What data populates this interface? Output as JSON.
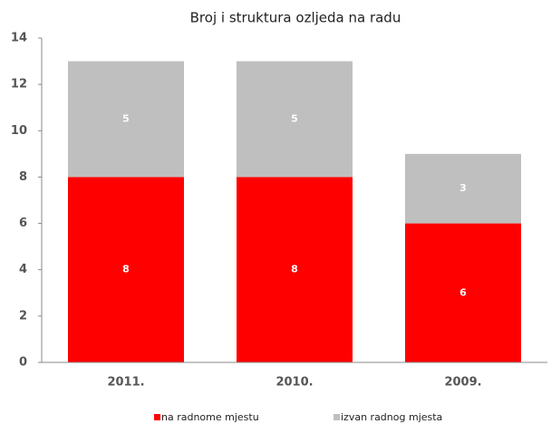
{
  "chart_data": {
    "type": "stacked_bar",
    "title": "Broj i struktura ozljeda na radu",
    "categories": [
      "2011.",
      "2010.",
      "2009."
    ],
    "series": [
      {
        "name": "na radnome mjestu",
        "color": "#ff0000",
        "values": [
          8,
          8,
          6
        ]
      },
      {
        "name": "izvan radnog mjesta",
        "color": "#bfbfbf",
        "values": [
          5,
          5,
          3
        ]
      }
    ],
    "ylim": [
      0,
      14
    ],
    "yticks": [
      0,
      2,
      4,
      6,
      8,
      10,
      12,
      14
    ],
    "grid": false,
    "legend": "bottom"
  }
}
